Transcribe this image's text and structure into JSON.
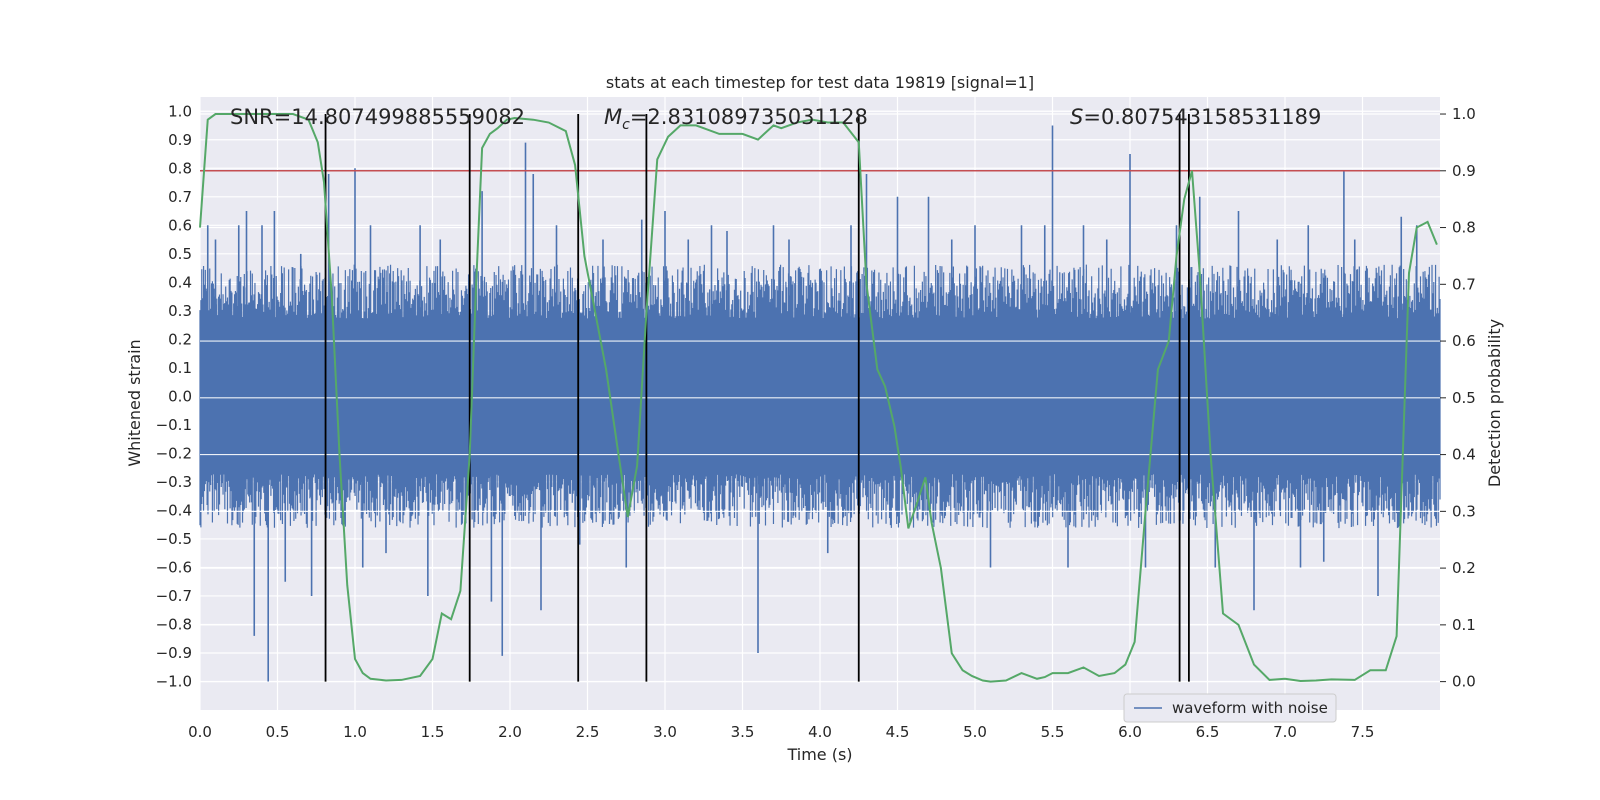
{
  "chart_data": {
    "type": "line",
    "title": "stats at each timestep for test data 19819 [signal=1]",
    "xlabel": "Time (s)",
    "ylabel": "Whitened strain",
    "y2label": "Detection probability",
    "xlim": [
      0.0,
      8.0
    ],
    "ylim": [
      -1.1,
      1.05
    ],
    "y2lim": [
      -0.05,
      1.03
    ],
    "x_ticks": [
      "0.0",
      "0.5",
      "1.0",
      "1.5",
      "2.0",
      "2.5",
      "3.0",
      "3.5",
      "4.0",
      "4.5",
      "5.0",
      "5.5",
      "6.0",
      "6.5",
      "7.0",
      "7.5"
    ],
    "y_ticks": [
      "1.0",
      "0.9",
      "0.8",
      "0.7",
      "0.6",
      "0.5",
      "0.4",
      "0.3",
      "0.2",
      "0.1",
      "0.0",
      "-0.1",
      "-0.2",
      "-0.3",
      "-0.4",
      "-0.5",
      "-0.6",
      "-0.7",
      "-0.8",
      "-0.9",
      "-1.0"
    ],
    "y2_ticks": [
      "1.0",
      "0.9",
      "0.8",
      "0.7",
      "0.6",
      "0.5",
      "0.4",
      "0.3",
      "0.2",
      "0.1",
      "0.0"
    ],
    "annotations": [
      {
        "text": "SNR=14.807499885559082",
        "x": 0.2
      },
      {
        "text_italic": "M",
        "sub": "c",
        "text": "=2.831089735031128",
        "x": 2.6
      },
      {
        "text_italic": "S",
        "text": "=0.807543158531189",
        "x": 5.6
      }
    ],
    "threshold": {
      "value": 0.9,
      "axis": "right",
      "color": "#c44e52"
    },
    "vertical_lines": [
      0.81,
      1.74,
      2.44,
      2.88,
      4.25,
      6.32,
      6.38
    ],
    "legend": {
      "entries": [
        "waveform with noise"
      ],
      "loc": "lower right"
    },
    "series": [
      {
        "name": "waveform with noise",
        "axis": "left",
        "color": "#4c72b0",
        "envelope": {
          "typical_upper": 0.42,
          "typical_lower": -0.42
        },
        "spikes": [
          [
            0.05,
            0.6
          ],
          [
            0.1,
            0.55
          ],
          [
            0.25,
            0.6
          ],
          [
            0.3,
            0.65
          ],
          [
            0.35,
            -0.84
          ],
          [
            0.4,
            0.6
          ],
          [
            0.44,
            -1.0
          ],
          [
            0.48,
            0.65
          ],
          [
            0.55,
            -0.65
          ],
          [
            0.65,
            0.5
          ],
          [
            0.72,
            -0.7
          ],
          [
            0.83,
            0.78
          ],
          [
            1.0,
            0.8
          ],
          [
            1.05,
            -0.6
          ],
          [
            1.1,
            0.6
          ],
          [
            1.2,
            -0.55
          ],
          [
            1.42,
            0.6
          ],
          [
            1.47,
            -0.7
          ],
          [
            1.55,
            0.55
          ],
          [
            1.82,
            0.72
          ],
          [
            1.88,
            -0.72
          ],
          [
            1.95,
            -0.91
          ],
          [
            2.1,
            0.89
          ],
          [
            2.15,
            0.78
          ],
          [
            2.2,
            -0.75
          ],
          [
            2.3,
            0.6
          ],
          [
            2.45,
            -0.52
          ],
          [
            2.6,
            0.55
          ],
          [
            2.75,
            -0.6
          ],
          [
            2.85,
            0.62
          ],
          [
            3.0,
            0.65
          ],
          [
            3.15,
            0.55
          ],
          [
            3.3,
            0.6
          ],
          [
            3.4,
            0.58
          ],
          [
            3.6,
            -0.9
          ],
          [
            3.7,
            0.6
          ],
          [
            3.8,
            0.55
          ],
          [
            4.05,
            -0.55
          ],
          [
            4.2,
            0.6
          ],
          [
            4.3,
            0.78
          ],
          [
            4.5,
            0.7
          ],
          [
            4.7,
            0.7
          ],
          [
            4.85,
            0.55
          ],
          [
            5.0,
            0.6
          ],
          [
            5.1,
            -0.6
          ],
          [
            5.3,
            0.6
          ],
          [
            5.45,
            0.6
          ],
          [
            5.5,
            0.95
          ],
          [
            5.6,
            -0.6
          ],
          [
            5.7,
            0.6
          ],
          [
            5.85,
            0.55
          ],
          [
            6.0,
            0.85
          ],
          [
            6.1,
            -0.6
          ],
          [
            6.3,
            0.6
          ],
          [
            6.45,
            0.7
          ],
          [
            6.55,
            -0.6
          ],
          [
            6.7,
            0.65
          ],
          [
            6.8,
            -0.75
          ],
          [
            6.95,
            0.55
          ],
          [
            7.1,
            -0.6
          ],
          [
            7.15,
            0.6
          ],
          [
            7.25,
            -0.58
          ],
          [
            7.38,
            0.79
          ],
          [
            7.45,
            0.55
          ],
          [
            7.6,
            -0.7
          ],
          [
            7.75,
            0.63
          ],
          [
            7.85,
            0.6
          ]
        ]
      },
      {
        "name": "Detection probability",
        "axis": "right",
        "color": "#55a868",
        "x": [
          0.0,
          0.05,
          0.1,
          0.15,
          0.3,
          0.5,
          0.6,
          0.7,
          0.76,
          0.8,
          0.85,
          0.9,
          0.95,
          1.0,
          1.05,
          1.1,
          1.2,
          1.3,
          1.42,
          1.5,
          1.56,
          1.62,
          1.68,
          1.74,
          1.78,
          1.82,
          1.87,
          1.92,
          1.98,
          2.03,
          2.15,
          2.25,
          2.36,
          2.42,
          2.48,
          2.55,
          2.62,
          2.7,
          2.76,
          2.82,
          2.88,
          2.95,
          3.02,
          3.1,
          3.2,
          3.35,
          3.5,
          3.6,
          3.7,
          3.75,
          3.85,
          3.95,
          4.05,
          4.15,
          4.25,
          4.3,
          4.37,
          4.42,
          4.48,
          4.52,
          4.57,
          4.62,
          4.68,
          4.72,
          4.78,
          4.85,
          4.92,
          4.98,
          5.05,
          5.1,
          5.2,
          5.3,
          5.4,
          5.45,
          5.5,
          5.6,
          5.7,
          5.8,
          5.9,
          5.97,
          6.03,
          6.1,
          6.18,
          6.25,
          6.3,
          6.35,
          6.4,
          6.45,
          6.52,
          6.6,
          6.7,
          6.8,
          6.9,
          7.0,
          7.1,
          7.2,
          7.3,
          7.45,
          7.55,
          7.65,
          7.72,
          7.8,
          7.85,
          7.92,
          7.98
        ],
        "values": [
          0.8,
          0.99,
          1.0,
          1.0,
          1.0,
          1.0,
          1.0,
          0.99,
          0.95,
          0.88,
          0.68,
          0.4,
          0.17,
          0.04,
          0.015,
          0.005,
          0.002,
          0.003,
          0.01,
          0.04,
          0.12,
          0.11,
          0.16,
          0.4,
          0.69,
          0.94,
          0.965,
          0.975,
          0.99,
          0.993,
          0.99,
          0.985,
          0.97,
          0.91,
          0.75,
          0.65,
          0.55,
          0.4,
          0.29,
          0.38,
          0.65,
          0.92,
          0.96,
          0.98,
          0.98,
          0.965,
          0.965,
          0.955,
          0.98,
          0.975,
          0.985,
          0.99,
          0.985,
          0.985,
          0.95,
          0.7,
          0.55,
          0.52,
          0.45,
          0.38,
          0.27,
          0.31,
          0.36,
          0.28,
          0.2,
          0.05,
          0.02,
          0.01,
          0.002,
          0.0,
          0.002,
          0.015,
          0.005,
          0.008,
          0.015,
          0.015,
          0.025,
          0.01,
          0.015,
          0.03,
          0.07,
          0.3,
          0.55,
          0.6,
          0.75,
          0.85,
          0.9,
          0.72,
          0.4,
          0.12,
          0.1,
          0.03,
          0.003,
          0.005,
          0.001,
          0.002,
          0.004,
          0.003,
          0.02,
          0.02,
          0.08,
          0.72,
          0.8,
          0.81,
          0.77
        ]
      }
    ]
  }
}
